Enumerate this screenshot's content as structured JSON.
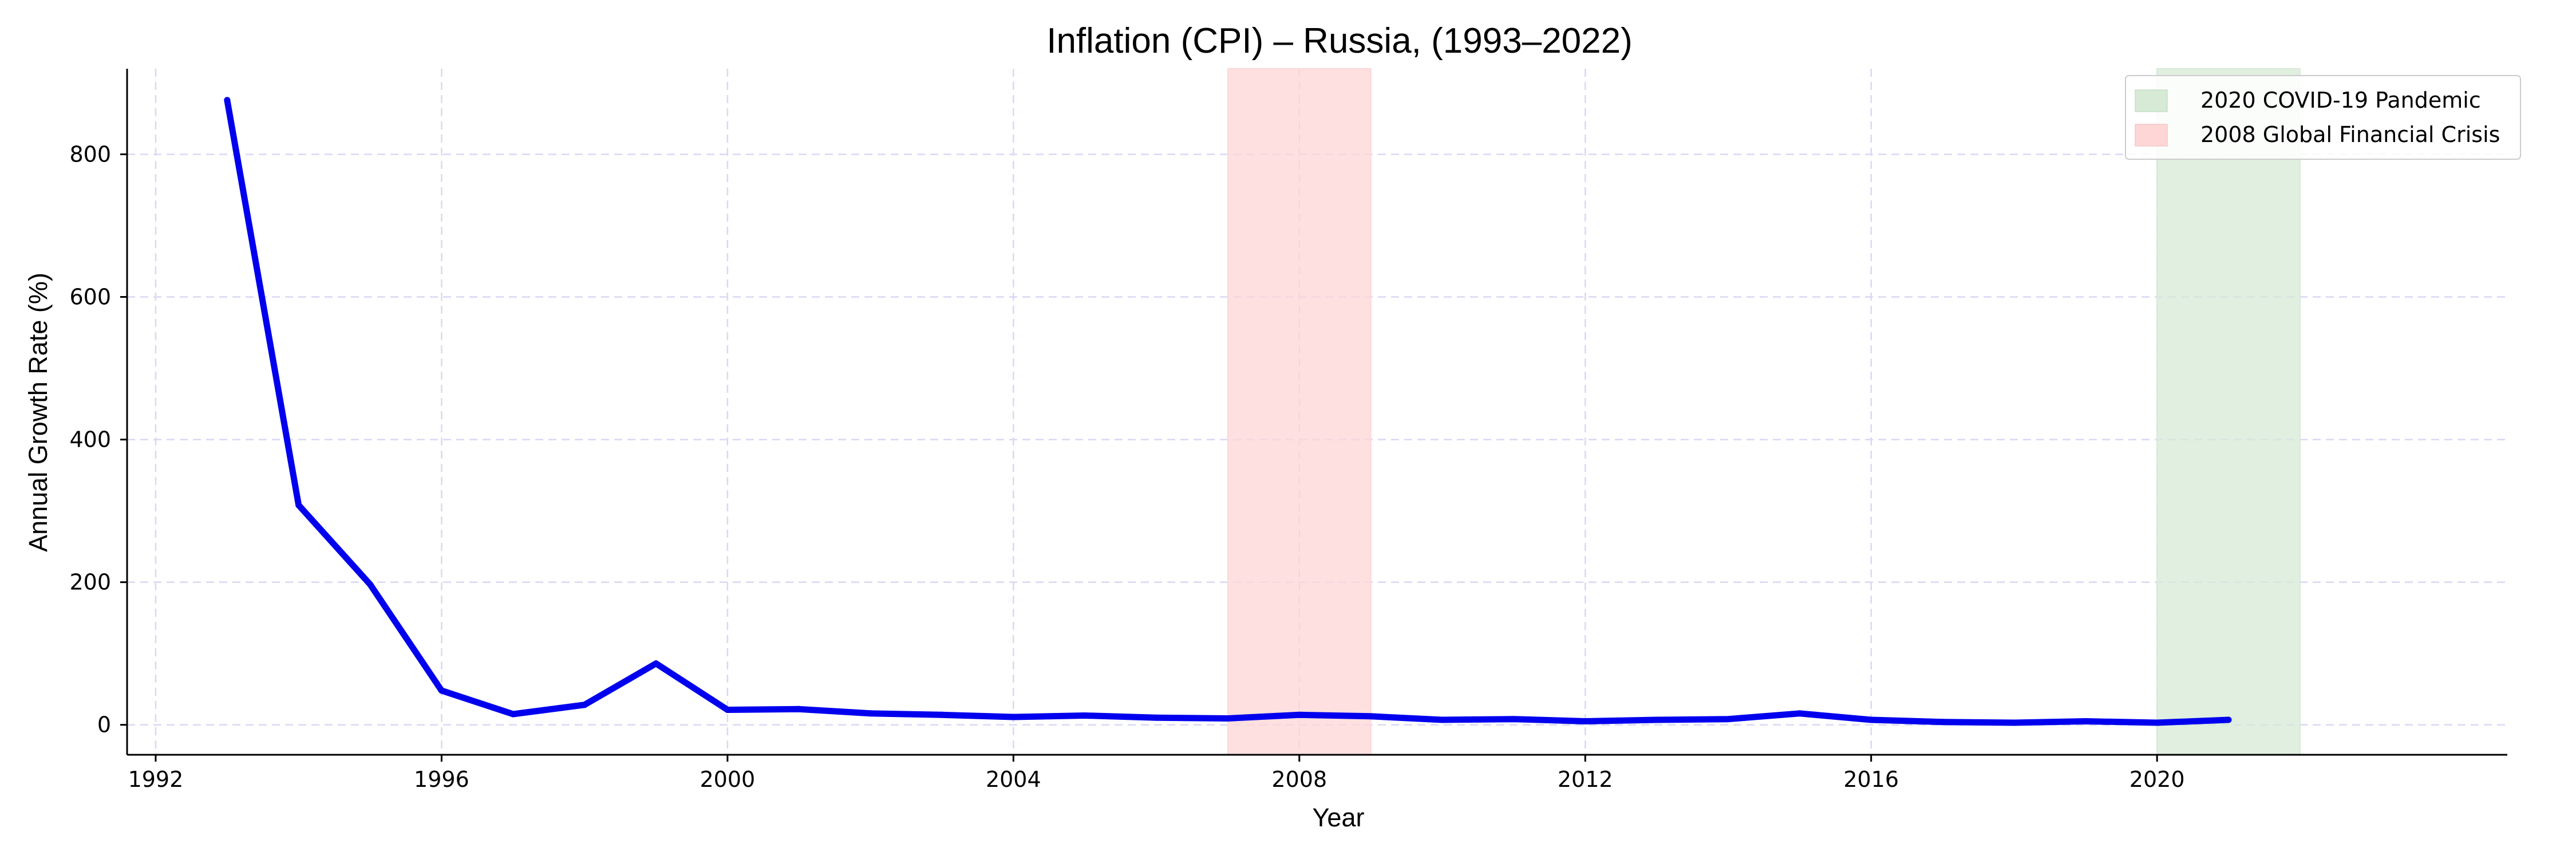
{
  "chart_data": {
    "type": "line",
    "title": "Inflation (CPI) – Russia, (1993–2022)",
    "xlabel": "Year",
    "ylabel": "Annual Growth Rate (%)",
    "xlim": [
      1991.6,
      2024.9
    ],
    "ylim": [
      -42,
      920
    ],
    "xticks": [
      1992,
      1996,
      2000,
      2004,
      2008,
      2012,
      2016,
      2020
    ],
    "yticks": [
      0,
      200,
      400,
      600,
      800
    ],
    "grid": true,
    "legend_position": "top-right",
    "series": [
      {
        "color": "#0000ee",
        "x": [
          1993,
          1994,
          1995,
          1996,
          1997,
          1998,
          1999,
          2000,
          2001,
          2002,
          2003,
          2004,
          2005,
          2006,
          2007,
          2008,
          2009,
          2010,
          2011,
          2012,
          2013,
          2014,
          2015,
          2016,
          2017,
          2018,
          2019,
          2020,
          2021
        ],
        "y": [
          876,
          308,
          197,
          48,
          15,
          28,
          86,
          21,
          22,
          16,
          14,
          11,
          13,
          10,
          9,
          14,
          12,
          7,
          8,
          5,
          7,
          8,
          16,
          7,
          4,
          3,
          5,
          3,
          7
        ]
      }
    ],
    "shaded_regions": [
      {
        "label": "2020 COVID-19 Pandemic",
        "x_start": 2020,
        "x_end": 2022,
        "color": "#d6ead6"
      },
      {
        "label": "2008 Global Financial Crisis",
        "x_start": 2007,
        "x_end": 2009,
        "color": "#ffd6d6"
      }
    ],
    "legend": [
      "2020 COVID-19 Pandemic",
      "2008 Global Financial Crisis"
    ]
  }
}
